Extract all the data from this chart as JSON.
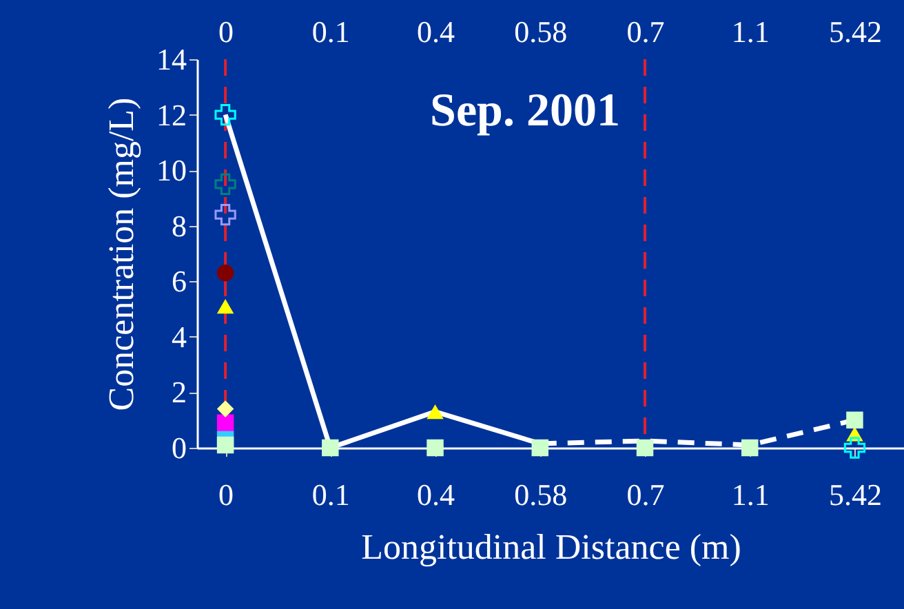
{
  "chart_data": {
    "type": "scatter",
    "xlabel": "Longitudinal Distance (m)",
    "ylabel": "Concentration (mg/L)",
    "annotations": [
      "Sep. 2001"
    ],
    "categories": [
      "0",
      "0.1",
      "0.4",
      "0.58",
      "0.7",
      "1.1",
      "5.42"
    ],
    "ylim": [
      0,
      14
    ],
    "yticks": [
      0,
      2,
      4,
      6,
      8,
      10,
      12,
      14
    ],
    "grid": false,
    "ref_lines": [
      {
        "axis": "x",
        "value": "0",
        "color": "#e02030",
        "line_style": "dashed"
      },
      {
        "axis": "x",
        "value": "0.7",
        "color": "#e02030",
        "line_style": "dashed"
      }
    ],
    "series": [
      {
        "type": "line",
        "color": "#ffffff",
        "line_style": "solid",
        "marker": "none",
        "values": [
          12,
          0,
          1.3,
          0.15,
          null,
          null,
          null
        ]
      },
      {
        "type": "line",
        "color": "#ffffff",
        "line_style": "dashed",
        "marker": "none",
        "values": [
          null,
          null,
          null,
          0.15,
          0.25,
          0.1,
          1.0
        ]
      },
      {
        "color": "#ff00ff",
        "marker": "square",
        "values": [
          0.9,
          null,
          null,
          null,
          null,
          null,
          null
        ]
      },
      {
        "color": "#ffff99",
        "marker": "diamond",
        "values": [
          1.4,
          null,
          null,
          null,
          null,
          null,
          null
        ]
      },
      {
        "color": "#ffff00",
        "marker": "triangle",
        "values": [
          5.1,
          null,
          1.3,
          null,
          null,
          null,
          0.5
        ]
      },
      {
        "color": "#800000",
        "marker": "circle",
        "values": [
          6.3,
          null,
          null,
          null,
          null,
          null,
          null
        ]
      },
      {
        "color": "#9999ff",
        "marker": "cross",
        "values": [
          8.4,
          null,
          null,
          null,
          null,
          null,
          null
        ]
      },
      {
        "color": "#008080",
        "marker": "cross",
        "values": [
          9.5,
          null,
          null,
          null,
          null,
          null,
          null
        ]
      },
      {
        "color": "#33ccff",
        "marker": "square",
        "values": [
          0.3,
          null,
          null,
          null,
          null,
          null,
          null
        ]
      },
      {
        "color": "#ccffcc",
        "marker": "square",
        "values": [
          0.1,
          0,
          0,
          0,
          0,
          0,
          1.0
        ]
      },
      {
        "color": "#00ffff",
        "marker": "cross",
        "values": [
          12,
          null,
          null,
          null,
          null,
          null,
          0
        ]
      }
    ]
  }
}
